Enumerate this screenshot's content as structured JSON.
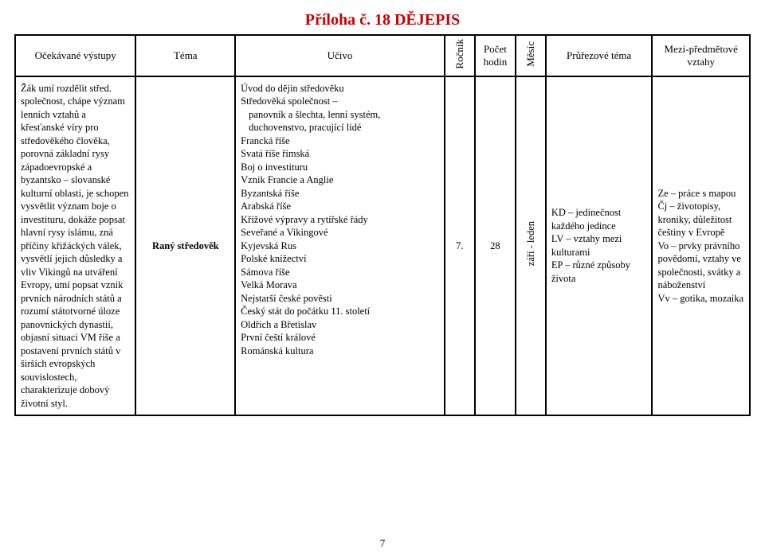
{
  "title": "Příloha č. 18  DĚJEPIS",
  "title_color": "#cc0000",
  "page_number": "7",
  "header": {
    "vystupy": "Očekávané výstupy",
    "tema": "Téma",
    "ucivo": "Učivo",
    "rocnik": "Ročník",
    "pocet": "Počet hodin",
    "mesic": "Měsíc",
    "pruzove": "Průřezové téma",
    "mezi": "Mezi-předmětové vztahy"
  },
  "row": {
    "vystupy": "Žák umí rozdělit střed. společnost, chápe význam lenních vztahů a křesťanské víry pro středověkého člověka, porovná základní rysy západoevropské a byzantsko – slovanské kulturní oblasti, je schopen vysvětlit význam boje o investituru, dokáže popsat hlavní rysy islámu, zná příčiny křižáckých válek, vysvětlí jejich důsledky a vliv Vikingů na utváření Evropy, umí popsat vznik prvních národních států a rozumí státotvorné úloze panovnických dynastií, objasní situaci VM říše a postavení prvních států v širších evropských souvislostech, charakterizuje dobový životní styl.",
    "tema": "Raný středověk",
    "ucivo": {
      "lines": [
        "Úvod do dějin středověku",
        "Středověká společnost –"
      ],
      "indent_lines": [
        "panovník a šlechta, lenní systém,",
        "duchovenstvo, pracující lidé"
      ],
      "lines2": [
        "Francká říše",
        "Svatá říše římská",
        "Boj o investituru",
        "Vznik Francie a Anglie",
        "Byzantská říše",
        "Arabská říše",
        "Křížové výpravy a rytířské řády",
        "Seveřané a Vikingové",
        "Kyjevská Rus",
        "Polské knížectví",
        "Sámova říše",
        "Velká Morava",
        "Nejstarší české pověsti",
        "Český stát do počátku 11. století",
        "Oldřich a Břetislav",
        "První čeští králové",
        "Románská kultura"
      ]
    },
    "rocnik": "7.",
    "pocet": "28",
    "mesic": "září - leden",
    "pruzove": "KD – jedinečnost každého jedince\nLV – vztahy mezi kulturami\nEP – různé způsoby života",
    "mezi": "Ze – práce s mapou\nČj – životopisy, kroniky, důležitost češtiny v Evropě\nVo – prvky právního povědomí, vztahy ve společnosti, svátky a náboženství\nVv – gotika, mozaika"
  }
}
